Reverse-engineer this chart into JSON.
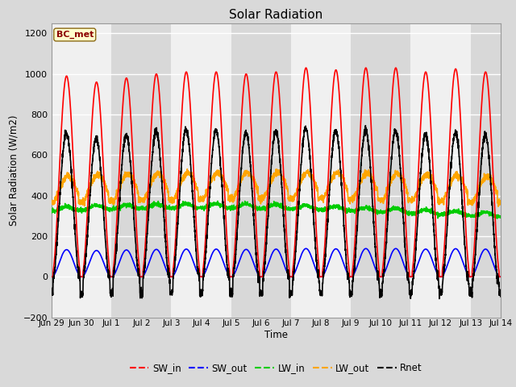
{
  "title": "Solar Radiation",
  "ylabel": "Solar Radiation (W/m2)",
  "xlabel": "Time",
  "annotation": "BC_met",
  "ylim": [
    -200,
    1250
  ],
  "yticks": [
    -200,
    0,
    200,
    400,
    600,
    800,
    1000,
    1200
  ],
  "num_days": 16,
  "tick_labels": [
    "Jun 29",
    "Jun 30",
    "Jul 1",
    "Jul 2",
    "Jul 3",
    "Jul 4",
    "Jul 5",
    "Jul 6",
    "Jul 7",
    "Jul 8",
    "Jul 9",
    "Jul 10",
    "Jul 11",
    "Jul 12",
    "Jul 13",
    "Jul 14"
  ],
  "series": {
    "SW_in": {
      "color": "#ff0000",
      "lw": 1.2
    },
    "SW_out": {
      "color": "#0000ff",
      "lw": 1.2
    },
    "LW_in": {
      "color": "#00cc00",
      "lw": 1.2
    },
    "LW_out": {
      "color": "#ffa500",
      "lw": 1.2
    },
    "Rnet": {
      "color": "#000000",
      "lw": 1.2
    }
  },
  "fig_bg_color": "#d9d9d9",
  "plot_bg_color": "#e8e8e8",
  "band_light": "#f0f0f0",
  "band_dark": "#d8d8d8",
  "annotation_bg": "#ffffcc",
  "annotation_fg": "#8b0000",
  "annotation_border": "#8b6914"
}
